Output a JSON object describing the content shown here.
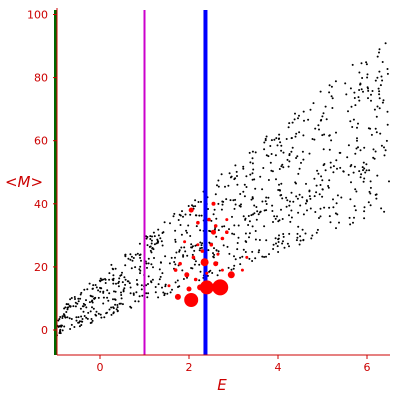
{
  "chart_data": {
    "type": "scatter",
    "xlabel": "E",
    "ylabel": "<M>",
    "xlim": [
      -1,
      6.5
    ],
    "ylim": [
      -8,
      101
    ],
    "x_ticks": [
      0,
      2,
      4,
      6
    ],
    "y_ticks": [
      0,
      20,
      40,
      60,
      80,
      100
    ],
    "grid": false,
    "vertical_lines": [
      {
        "x": -1.0,
        "color": "#006600"
      },
      {
        "x": 1.0,
        "color": "#cc00cc"
      },
      {
        "x": 2.37,
        "color": "#0000ff"
      }
    ],
    "colors": {
      "background_points": "#000000",
      "highlight_points": "#ff0000",
      "axis": "#cc0000"
    },
    "highlight_points": [
      {
        "x": 2.05,
        "y": 9.5,
        "size": 7
      },
      {
        "x": 2.4,
        "y": 13.5,
        "size": 7
      },
      {
        "x": 2.7,
        "y": 13.5,
        "size": 8
      },
      {
        "x": 1.75,
        "y": 10.5,
        "size": 3
      },
      {
        "x": 2.0,
        "y": 13.0,
        "size": 2.5
      },
      {
        "x": 2.25,
        "y": 13.5,
        "size": 3
      },
      {
        "x": 2.35,
        "y": 21.5,
        "size": 4
      },
      {
        "x": 2.95,
        "y": 17.5,
        "size": 3.5
      },
      {
        "x": 1.95,
        "y": 17.5,
        "size": 2.5
      },
      {
        "x": 2.6,
        "y": 21.0,
        "size": 2.5
      },
      {
        "x": 2.55,
        "y": 31.0,
        "size": 2.5
      },
      {
        "x": 2.05,
        "y": 38.0,
        "size": 2.5
      },
      {
        "x": 2.55,
        "y": 40.0,
        "size": 2
      },
      {
        "x": 1.7,
        "y": 19.0,
        "size": 1.8
      },
      {
        "x": 1.8,
        "y": 21.0,
        "size": 1.8
      },
      {
        "x": 2.1,
        "y": 23.0,
        "size": 1.8
      },
      {
        "x": 2.3,
        "y": 25.0,
        "size": 1.8
      },
      {
        "x": 2.5,
        "y": 27.0,
        "size": 1.8
      },
      {
        "x": 2.75,
        "y": 29.0,
        "size": 1.8
      },
      {
        "x": 2.85,
        "y": 31.0,
        "size": 1.8
      },
      {
        "x": 2.2,
        "y": 34.0,
        "size": 1.8
      },
      {
        "x": 2.45,
        "y": 35.0,
        "size": 1.8
      },
      {
        "x": 3.2,
        "y": 19.0,
        "size": 1.5
      },
      {
        "x": 3.3,
        "y": 23.0,
        "size": 1.5
      },
      {
        "x": 2.15,
        "y": 16.0,
        "size": 1.8
      },
      {
        "x": 1.55,
        "y": 14.0,
        "size": 1.5
      },
      {
        "x": 2.65,
        "y": 24.0,
        "size": 1.5
      },
      {
        "x": 1.9,
        "y": 28.0,
        "size": 1.5
      },
      {
        "x": 2.2,
        "y": 27.0,
        "size": 1.5
      },
      {
        "x": 2.6,
        "y": 33.0,
        "size": 1.8
      },
      {
        "x": 2.85,
        "y": 35.0,
        "size": 1.5
      },
      {
        "x": 2.4,
        "y": 18.0,
        "size": 1.5
      },
      {
        "x": 2.75,
        "y": 19.0,
        "size": 1.5
      }
    ]
  }
}
